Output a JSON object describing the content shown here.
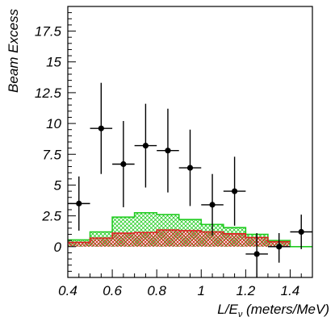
{
  "chart_data": {
    "type": "scatter",
    "title": "",
    "ylabel": "Beam Excess",
    "xlabel_main": "L/E",
    "xlabel_sub": "ν",
    "xlabel_units": " (meters/MeV)",
    "xlim": [
      0.4,
      1.5
    ],
    "ylim": [
      -2.5,
      19.5
    ],
    "x_ticks": [
      0.4,
      0.6,
      0.8,
      1.0,
      1.2,
      1.4
    ],
    "x_tick_labels": [
      "0.4",
      "0.6",
      "0.8",
      "1",
      "1.2",
      "1.4"
    ],
    "y_ticks": [
      0,
      2.5,
      5,
      7.5,
      10,
      12.5,
      15,
      17.5
    ],
    "y_tick_labels": [
      "0",
      "2.5",
      "5",
      "7.5",
      "10",
      "12.5",
      "15",
      "17.5"
    ],
    "grid": false,
    "series": [
      {
        "kind": "data-points",
        "color": "#000000",
        "points": [
          {
            "x": 0.45,
            "y": 3.5,
            "xerr": 0.05,
            "ylo": 1.3,
            "yhi": 5.7
          },
          {
            "x": 0.55,
            "y": 9.6,
            "xerr": 0.05,
            "ylo": 5.9,
            "yhi": 13.3
          },
          {
            "x": 0.65,
            "y": 6.7,
            "xerr": 0.05,
            "ylo": 3.2,
            "yhi": 10.2
          },
          {
            "x": 0.75,
            "y": 8.2,
            "xerr": 0.05,
            "ylo": 4.8,
            "yhi": 11.6
          },
          {
            "x": 0.85,
            "y": 7.8,
            "xerr": 0.05,
            "ylo": 4.4,
            "yhi": 11.2
          },
          {
            "x": 0.95,
            "y": 6.4,
            "xerr": 0.05,
            "ylo": 3.3,
            "yhi": 9.5
          },
          {
            "x": 1.05,
            "y": 3.4,
            "xerr": 0.05,
            "ylo": 0.9,
            "yhi": 5.9
          },
          {
            "x": 1.15,
            "y": 4.5,
            "xerr": 0.05,
            "ylo": 1.7,
            "yhi": 7.3
          },
          {
            "x": 1.25,
            "y": -0.6,
            "xerr": 0.05,
            "ylo": -2.5,
            "yhi": 1.1
          },
          {
            "x": 1.35,
            "y": 0.0,
            "xerr": 0.05,
            "ylo": -1.3,
            "yhi": 1.1
          },
          {
            "x": 1.45,
            "y": 1.2,
            "xerr": 0.05,
            "ylo": -0.2,
            "yhi": 2.6
          }
        ]
      },
      {
        "kind": "green-hatched-histogram",
        "color": "#22cc22",
        "bin_edges": [
          0.4,
          0.5,
          0.6,
          0.7,
          0.8,
          0.9,
          1.0,
          1.1,
          1.2,
          1.3,
          1.4,
          1.5
        ],
        "values": [
          0.4,
          1.2,
          2.4,
          2.7,
          2.6,
          2.2,
          1.7,
          1.5,
          0.9,
          0.5,
          0.0
        ],
        "values_upper": [
          0.55,
          1.2,
          2.4,
          2.75,
          2.6,
          2.2,
          1.8,
          1.55,
          1.0,
          0.5,
          0.0
        ]
      },
      {
        "kind": "red-hatched-histogram",
        "color": "#dd2222",
        "bin_edges": [
          0.4,
          0.5,
          0.6,
          0.7,
          0.8,
          0.9,
          1.0,
          1.1,
          1.2,
          1.3,
          1.4
        ],
        "values": [
          0.35,
          0.7,
          1.1,
          1.15,
          1.35,
          1.3,
          1.2,
          1.05,
          0.75,
          0.4
        ]
      }
    ]
  }
}
